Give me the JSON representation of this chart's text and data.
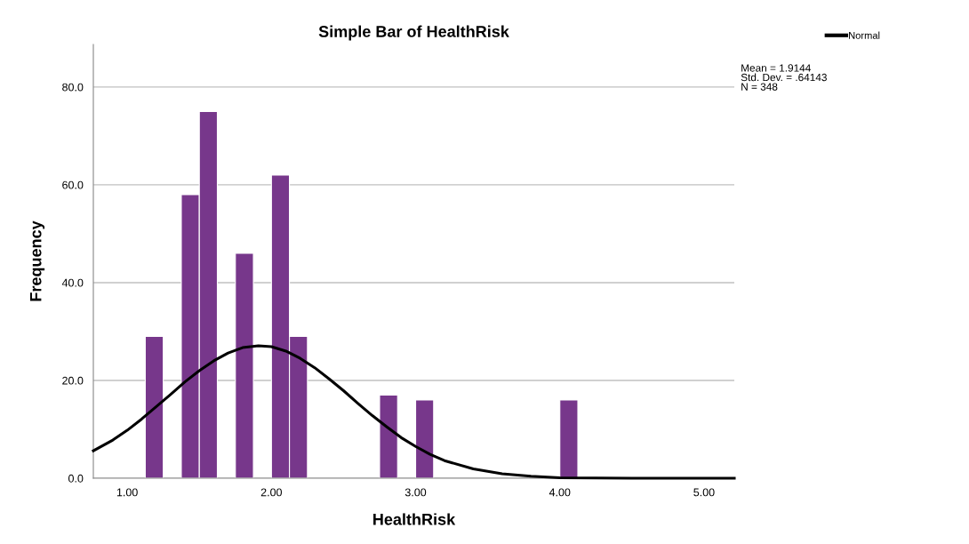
{
  "chart_data": {
    "type": "histogram",
    "title": "Simple Bar of HealthRisk",
    "xlabel": "HealthRisk",
    "ylabel": "Frequency",
    "bins": [
      1.125,
      1.25,
      1.375,
      1.5,
      1.625,
      1.75,
      1.875,
      2.0,
      2.125,
      2.25,
      2.375,
      2.5,
      2.625,
      2.75,
      2.875,
      3.0,
      3.125,
      3.25,
      3.375,
      3.5,
      3.625,
      3.75,
      3.875,
      4.0,
      4.125
    ],
    "values": [
      29,
      0,
      58,
      75,
      0,
      46,
      0,
      62,
      29,
      0,
      0,
      0,
      0,
      17,
      0,
      16,
      0,
      0,
      0,
      0,
      0,
      0,
      0,
      16
    ],
    "color": "#77378b",
    "series": [
      {
        "name": "Normal",
        "type": "line",
        "color": "#000000",
        "x": [
          0.765,
          0.9,
          1.0,
          1.1,
          1.2,
          1.3,
          1.4,
          1.5,
          1.6,
          1.7,
          1.8,
          1.91,
          2.0,
          2.1,
          2.2,
          2.3,
          2.4,
          2.5,
          2.6,
          2.7,
          2.8,
          2.9,
          3.0,
          3.1,
          3.2,
          3.4,
          3.6,
          3.8,
          4.0,
          4.5,
          5.21
        ],
        "values": [
          5.6,
          7.8,
          9.8,
          12.1,
          14.6,
          17.1,
          19.7,
          22.0,
          24.0,
          25.6,
          26.7,
          27.1,
          26.9,
          26.0,
          24.5,
          22.6,
          20.3,
          17.9,
          15.3,
          12.8,
          10.5,
          8.3,
          6.5,
          4.9,
          3.6,
          1.9,
          0.9,
          0.4,
          0.1,
          0.0,
          0.0
        ]
      }
    ],
    "xlim": [
      0.765,
      5.21
    ],
    "ylim": [
      0,
      88.7
    ],
    "xticks": [
      {
        "value": 1,
        "label": "1.00"
      },
      {
        "value": 2,
        "label": "2.00"
      },
      {
        "value": 3,
        "label": "3.00"
      },
      {
        "value": 4,
        "label": "4.00"
      },
      {
        "value": 5,
        "label": "5.00"
      }
    ],
    "yticks": [
      {
        "value": 0,
        "label": "0.0"
      },
      {
        "value": 20,
        "label": "20.0"
      },
      {
        "value": 40,
        "label": "40.0"
      },
      {
        "value": 60,
        "label": "60.0"
      },
      {
        "value": 80,
        "label": "80.0"
      }
    ],
    "grid": "y",
    "legend": "top right",
    "marker": "none",
    "line_style": "solid",
    "annotations": [
      "Mean = 1.9144\nStd. Dev. = .64143\nN = 348"
    ]
  }
}
